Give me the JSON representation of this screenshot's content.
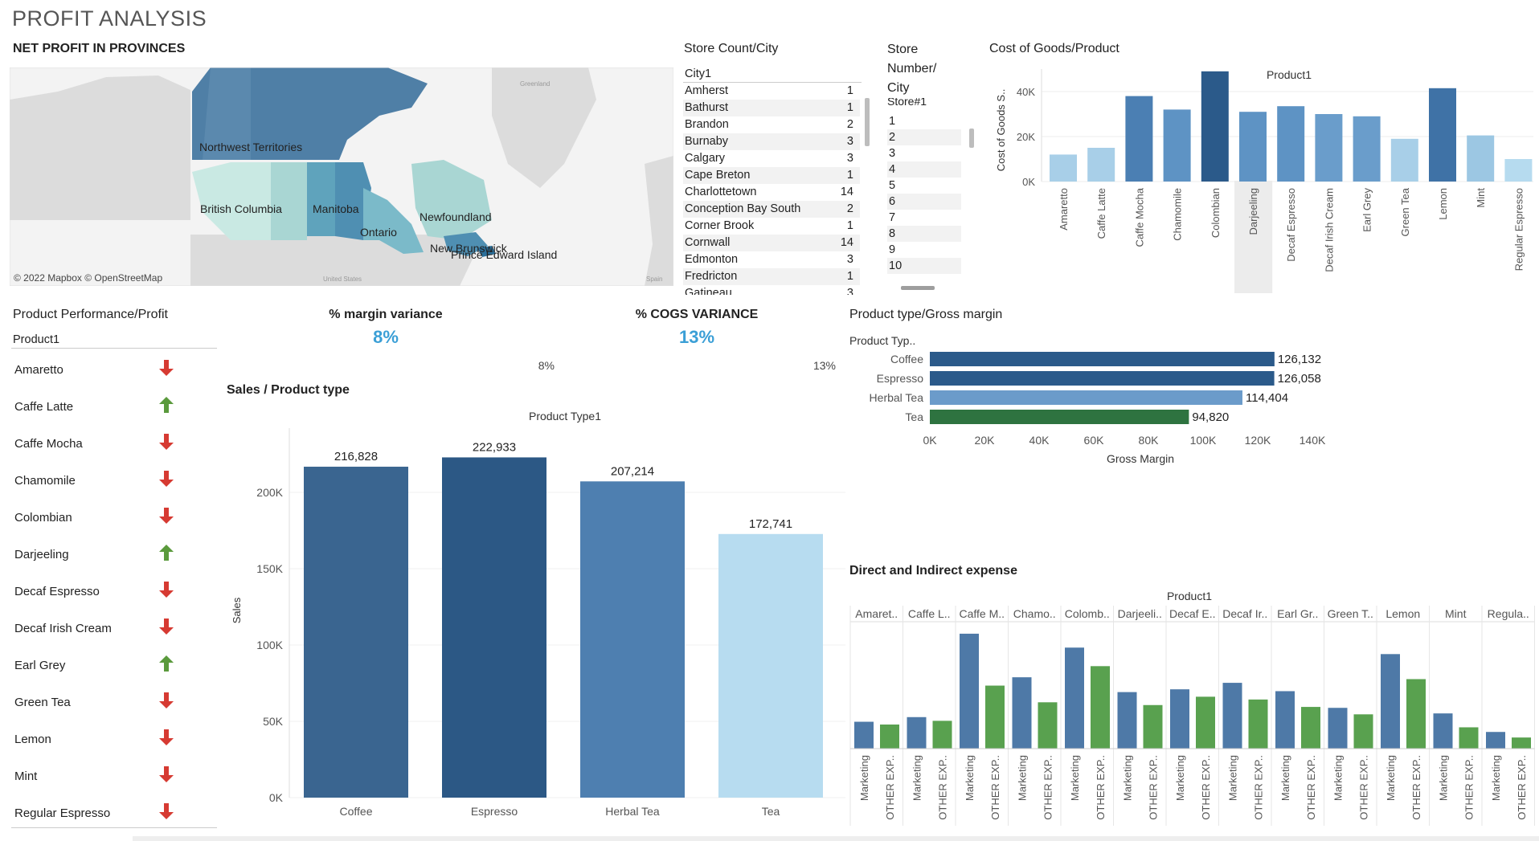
{
  "dashboard_title": "PROFIT ANALYSIS",
  "map": {
    "title": "NET PROFIT IN PROVINCES",
    "credit": "© 2022 Mapbox © OpenStreetMap",
    "labels": [
      "Northwest Territories",
      "British Columbia",
      "Manitoba",
      "Ontario",
      "Newfoundland",
      "New Brunswick",
      "Prince Edward Island",
      "Greenland",
      "United States",
      "Spain"
    ],
    "colors": {
      "dark": "#4f7fa6",
      "mid": "#5fa3bc",
      "light": "#a9d6d3",
      "pale": "#c9e9e3",
      "land": "#dcdcdc",
      "ocean": "#f3f3f3"
    }
  },
  "store_count": {
    "title": "Store Count/City",
    "column": "City1",
    "rows": [
      {
        "city": "Amherst",
        "count": "1"
      },
      {
        "city": "Bathurst",
        "count": "1"
      },
      {
        "city": "Brandon",
        "count": "2"
      },
      {
        "city": "Burnaby",
        "count": "3"
      },
      {
        "city": "Calgary",
        "count": "3"
      },
      {
        "city": "Cape Breton",
        "count": "1"
      },
      {
        "city": "Charlottetown",
        "count": "14"
      },
      {
        "city": "Conception Bay South",
        "count": "2"
      },
      {
        "city": "Corner Brook",
        "count": "1"
      },
      {
        "city": "Cornwall",
        "count": "14"
      },
      {
        "city": "Edmonton",
        "count": "3"
      },
      {
        "city": "Fredricton",
        "count": "1"
      },
      {
        "city": "Gatineau",
        "count": "3"
      }
    ]
  },
  "store_number": {
    "title_lines": [
      "Store",
      "Number/",
      "City"
    ],
    "column": "Store#1",
    "rows": [
      "1",
      "2",
      "3",
      "4",
      "5",
      "6",
      "7",
      "8",
      "9",
      "10"
    ]
  },
  "cogs_title": "Cost of Goods/Product",
  "kpis": [
    {
      "title": "% margin variance",
      "value": "8%",
      "sub": "8%"
    },
    {
      "title": "% COGS VARIANCE",
      "value": "13%",
      "sub": "13%"
    }
  ],
  "perf": {
    "title": "Product Performance/Profit",
    "column": "Product1",
    "rows": [
      {
        "name": "Amaretto",
        "dir": "down"
      },
      {
        "name": "Caffe Latte",
        "dir": "up"
      },
      {
        "name": "Caffe Mocha",
        "dir": "down"
      },
      {
        "name": "Chamomile",
        "dir": "down"
      },
      {
        "name": "Colombian",
        "dir": "down"
      },
      {
        "name": "Darjeeling",
        "dir": "up"
      },
      {
        "name": "Decaf Espresso",
        "dir": "down"
      },
      {
        "name": "Decaf Irish Cream",
        "dir": "down"
      },
      {
        "name": "Earl Grey",
        "dir": "up"
      },
      {
        "name": "Green Tea",
        "dir": "down"
      },
      {
        "name": "Lemon",
        "dir": "down"
      },
      {
        "name": "Mint",
        "dir": "down"
      },
      {
        "name": "Regular Espresso",
        "dir": "down"
      }
    ],
    "colors": {
      "up": "#5a9a3c",
      "down": "#d63a32"
    }
  },
  "sales_title": "Sales / Product type",
  "gross_title": "Product type/Gross margin",
  "expense_title": "Direct and Indirect expense",
  "chart_data": [
    {
      "type": "bar",
      "id": "cogs",
      "header": "Product1",
      "ylabel": "Cost of Goods S..",
      "categories": [
        "Amaretto",
        "Caffe Latte",
        "Caffe Mocha",
        "Chamomile",
        "Colombian",
        "Darjeeling",
        "Decaf Espresso",
        "Decaf Irish Cream",
        "Earl Grey",
        "Green Tea",
        "Lemon",
        "Mint",
        "Regular Espresso"
      ],
      "values": [
        12000,
        15000,
        38000,
        32000,
        49000,
        31000,
        33500,
        30000,
        29000,
        19000,
        41500,
        20500,
        10000
      ],
      "ylim": [
        0,
        50000
      ],
      "yticks": [
        "0K",
        "20K",
        "40K"
      ],
      "colors": [
        "#a8cfe8",
        "#a8cfe8",
        "#4b7fb3",
        "#5e93c4",
        "#2b5a8a",
        "#5e93c4",
        "#5e93c4",
        "#6a9dcb",
        "#6a9dcb",
        "#a8cfe8",
        "#3f72a6",
        "#9cc7e3",
        "#b6dbef"
      ],
      "highlight": "Darjeeling"
    },
    {
      "type": "bar",
      "id": "sales",
      "header": "Product Type1",
      "ylabel": "Sales",
      "categories": [
        "Coffee",
        "Espresso",
        "Herbal Tea",
        "Tea"
      ],
      "values": [
        216828,
        222933,
        207214,
        172741
      ],
      "data_labels": [
        "216,828",
        "222,933",
        "207,214",
        "172,741"
      ],
      "ylim": [
        0,
        240000
      ],
      "yticks": [
        "0K",
        "50K",
        "100K",
        "150K",
        "200K"
      ],
      "colors": [
        "#3a6590",
        "#2c5885",
        "#4e7fb0",
        "#b7dcf0"
      ]
    },
    {
      "type": "bar",
      "orientation": "horizontal",
      "id": "gross",
      "header": "Product Typ..",
      "xlabel": "Gross Margin",
      "categories": [
        "Coffee",
        "Espresso",
        "Herbal Tea",
        "Tea"
      ],
      "values": [
        126132,
        126058,
        114404,
        94820
      ],
      "data_labels": [
        "126,132",
        "126,058",
        "114,404",
        "94,820"
      ],
      "xlim": [
        0,
        140000
      ],
      "xticks": [
        "0K",
        "20K",
        "40K",
        "60K",
        "80K",
        "100K",
        "120K",
        "140K"
      ],
      "colors": [
        "#2b5a8a",
        "#2b5a8a",
        "#6b9bca",
        "#2e7340"
      ]
    },
    {
      "type": "bar",
      "id": "expense",
      "header": "Product1",
      "categories": [
        "Amaret..",
        "Caffe L..",
        "Caffe M..",
        "Chamo..",
        "Colomb..",
        "Darjeeli..",
        "Decaf E..",
        "Decaf Ir..",
        "Earl Gr..",
        "Green T..",
        "Lemon",
        "Mint",
        "Regula.."
      ],
      "series": [
        {
          "name": "Marketing",
          "values": [
            29,
            34,
            124,
            77,
            109,
            61,
            64,
            71,
            62,
            44,
            102,
            38,
            18
          ]
        },
        {
          "name": "OTHER EXP..",
          "values": [
            26,
            30,
            68,
            50,
            89,
            47,
            56,
            53,
            45,
            37,
            75,
            23,
            12
          ]
        }
      ],
      "ylim": [
        0,
        130
      ],
      "colors": {
        "Marketing": "#4e79a7",
        "OTHER EXP..": "#59a14f"
      }
    }
  ]
}
